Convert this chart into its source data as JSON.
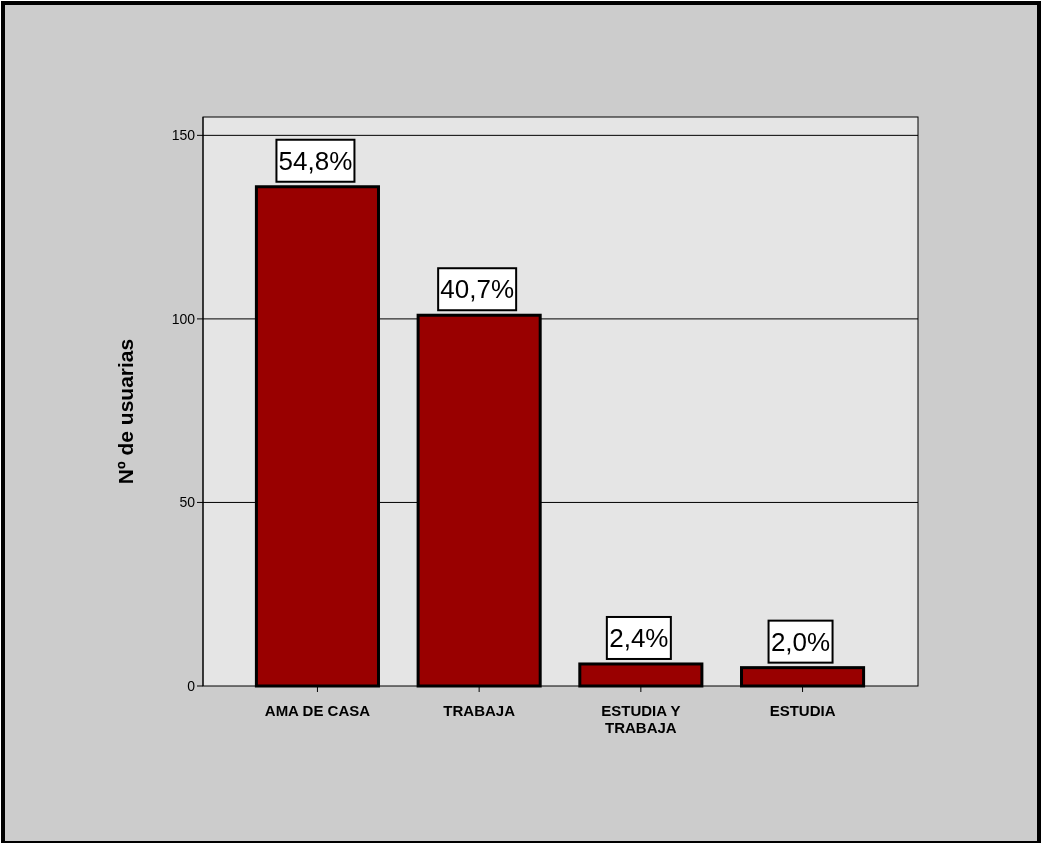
{
  "chart_data": {
    "type": "bar",
    "ylabel": "Nº de usuarias",
    "categories": [
      "AMA DE CASA",
      "TRABAJA",
      "ESTUDIA Y TRABAJA",
      "ESTUDIA"
    ],
    "values": [
      136,
      101,
      6,
      5
    ],
    "annotations": [
      {
        "text": "54,8%",
        "x": "AMA DE CASA",
        "y": 136
      },
      {
        "text": "40,7%",
        "x": "TRABAJA",
        "y": 101
      },
      {
        "text": "2,4%",
        "x": "ESTUDIA Y TRABAJA",
        "y": 6
      },
      {
        "text": "2,0%",
        "x": "ESTUDIA",
        "y": 5
      }
    ],
    "color": "#990000",
    "ylim": [
      0,
      155
    ],
    "yticks": [
      0,
      50,
      100,
      150
    ],
    "grid": "y"
  }
}
